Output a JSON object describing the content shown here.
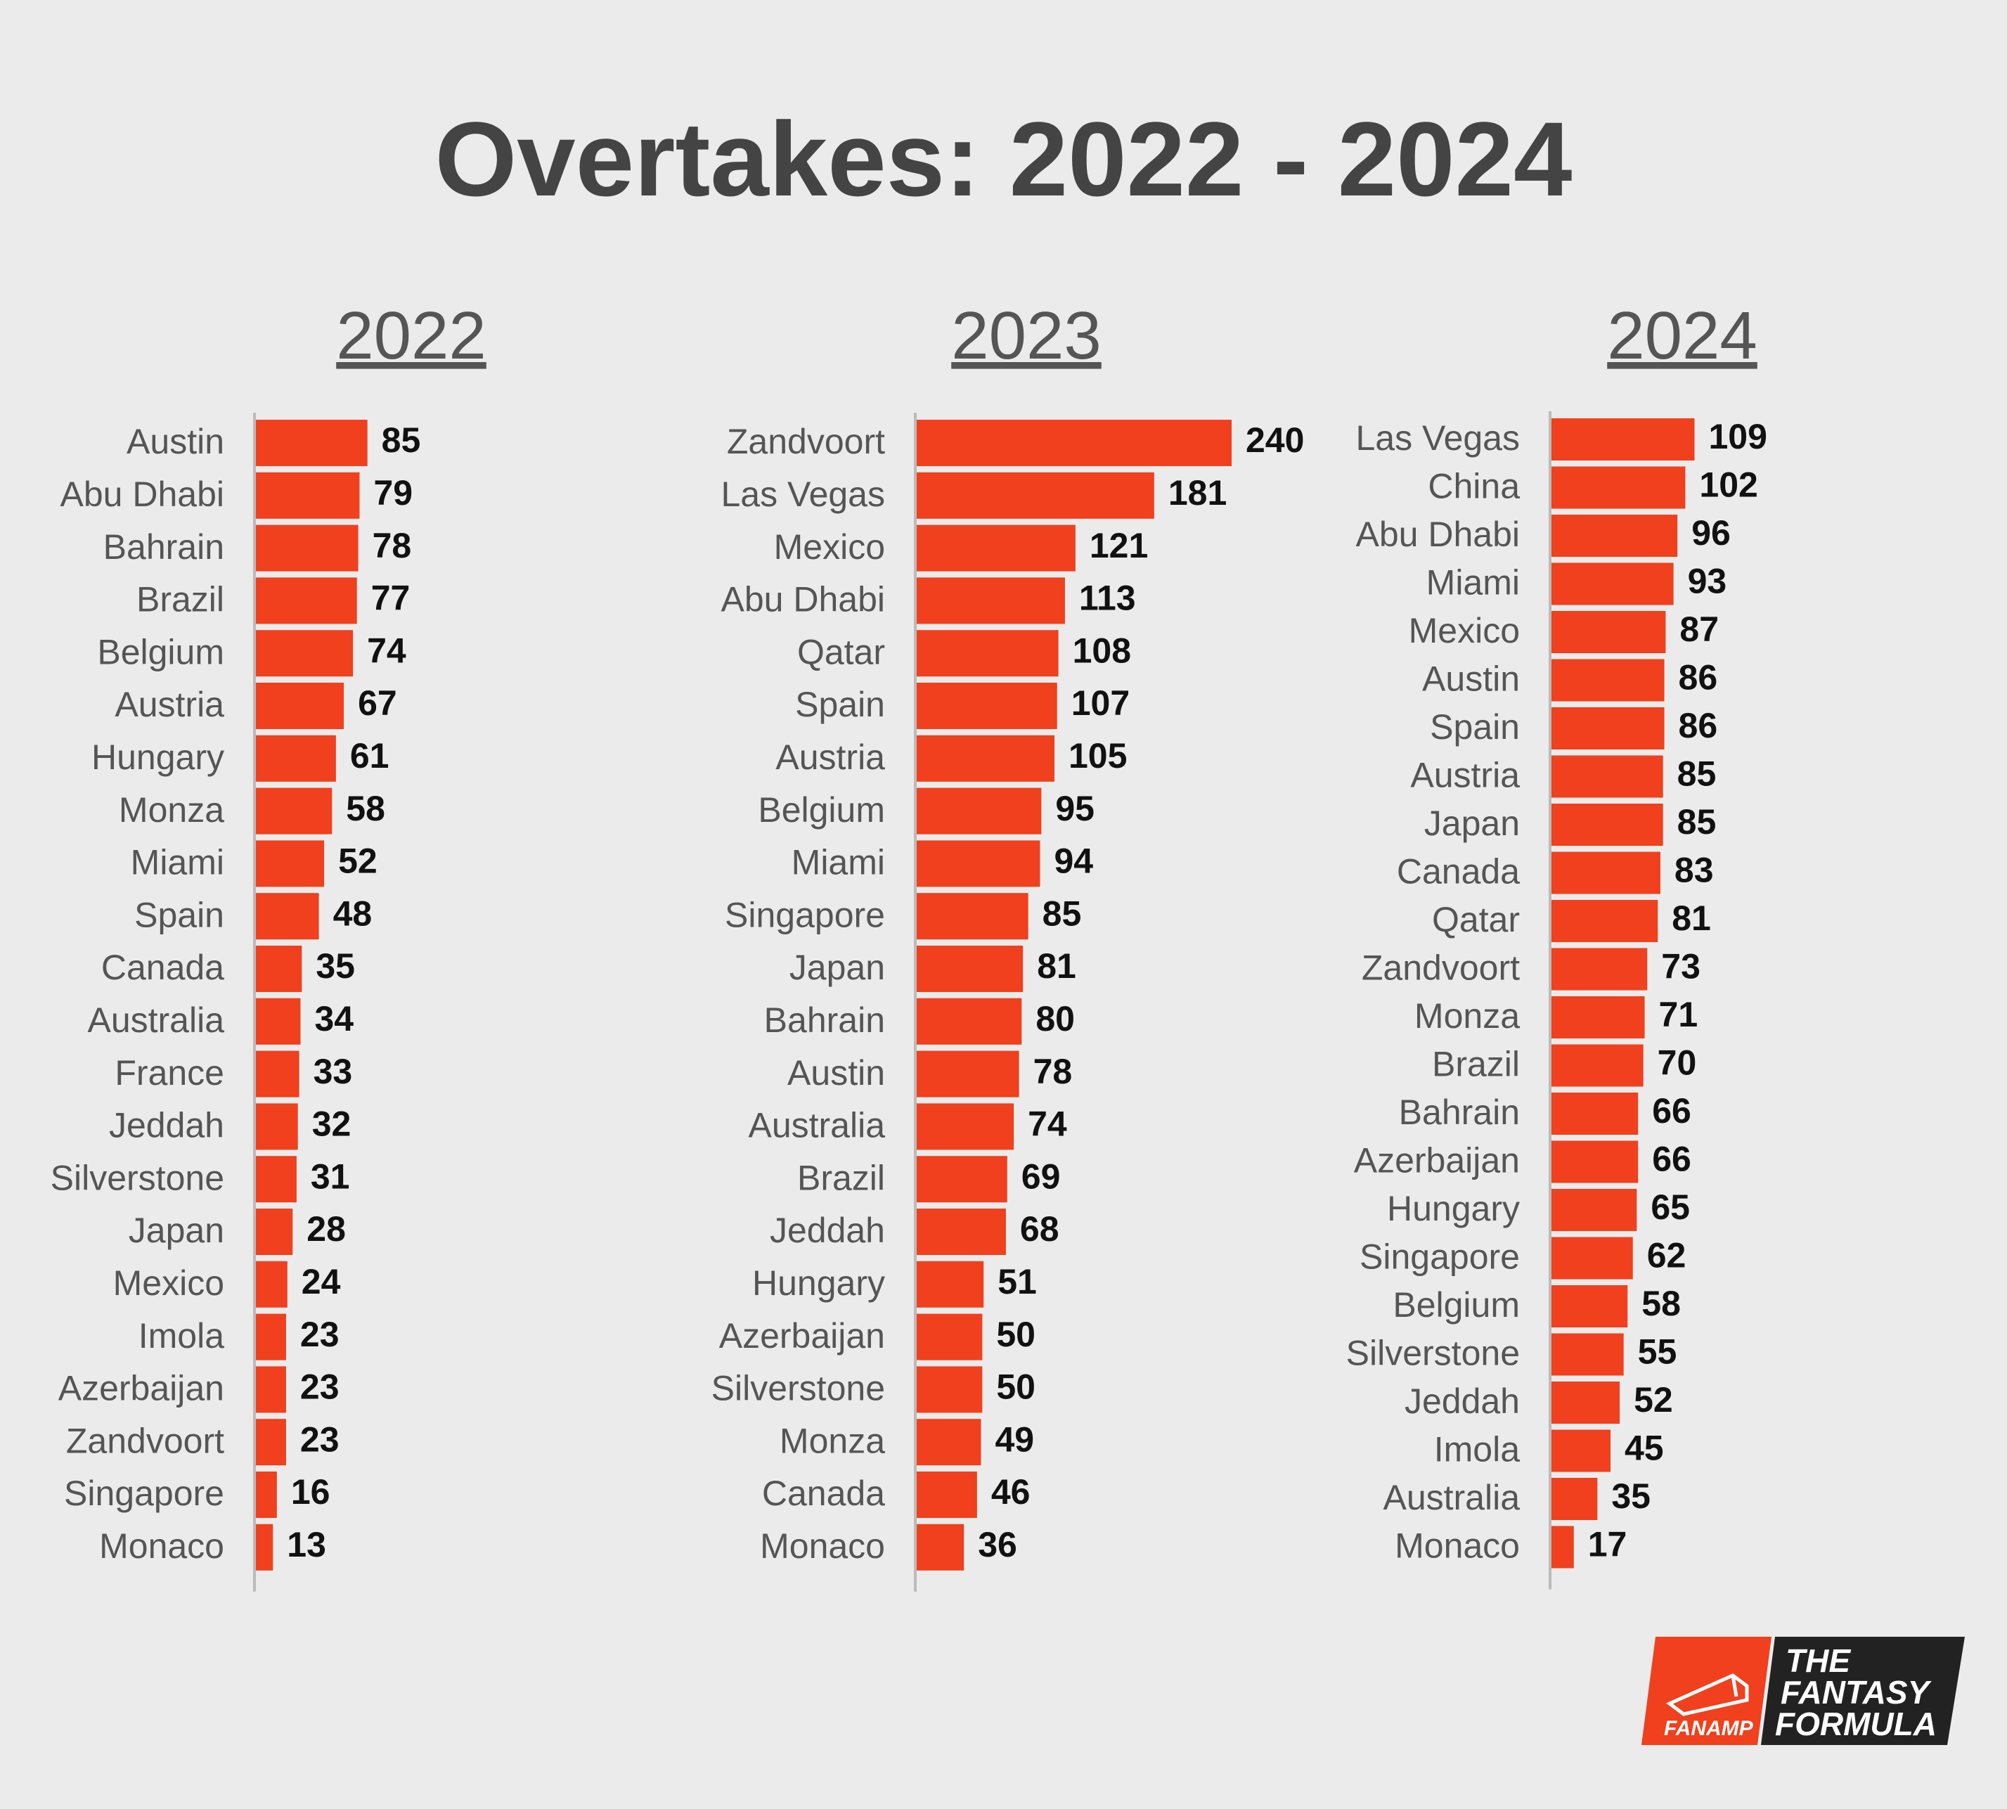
{
  "title": "Overtakes: 2022 - 2024",
  "colors": {
    "background": "#ebebeb",
    "bar": "#f0401d",
    "title": "#444444",
    "label": "#555555",
    "value": "#111111"
  },
  "chart_data": [
    {
      "type": "bar",
      "orientation": "horizontal",
      "title": "2022",
      "categories": [
        "Austin",
        "Abu Dhabi",
        "Bahrain",
        "Brazil",
        "Belgium",
        "Austria",
        "Hungary",
        "Monza",
        "Miami",
        "Spain",
        "Canada",
        "Australia",
        "France",
        "Jeddah",
        "Silverstone",
        "Japan",
        "Mexico",
        "Imola",
        "Azerbaijan",
        "Zandvoort",
        "Singapore",
        "Monaco"
      ],
      "values": [
        85,
        79,
        78,
        77,
        74,
        67,
        61,
        58,
        52,
        48,
        35,
        34,
        33,
        32,
        31,
        28,
        24,
        23,
        23,
        23,
        16,
        13
      ],
      "xlim": [
        0,
        240
      ],
      "grid": false
    },
    {
      "type": "bar",
      "orientation": "horizontal",
      "title": "2023",
      "categories": [
        "Zandvoort",
        "Las Vegas",
        "Mexico",
        "Abu Dhabi",
        "Qatar",
        "Spain",
        "Austria",
        "Belgium",
        "Miami",
        "Singapore",
        "Japan",
        "Bahrain",
        "Austin",
        "Australia",
        "Brazil",
        "Jeddah",
        "Hungary",
        "Azerbaijan",
        "Silverstone",
        "Monza",
        "Canada",
        "Monaco"
      ],
      "values": [
        240,
        181,
        121,
        113,
        108,
        107,
        105,
        95,
        94,
        85,
        81,
        80,
        78,
        74,
        69,
        68,
        51,
        50,
        50,
        49,
        46,
        36
      ],
      "xlim": [
        0,
        240
      ],
      "grid": false
    },
    {
      "type": "bar",
      "orientation": "horizontal",
      "title": "2024",
      "categories": [
        "Las Vegas",
        "China",
        "Abu Dhabi",
        "Miami",
        "Mexico",
        "Austin",
        "Spain",
        "Austria",
        "Japan",
        "Canada",
        "Qatar",
        "Zandvoort",
        "Monza",
        "Brazil",
        "Bahrain",
        "Azerbaijan",
        "Hungary",
        "Singapore",
        "Belgium",
        "Silverstone",
        "Jeddah",
        "Imola",
        "Australia",
        "Monaco"
      ],
      "values": [
        109,
        102,
        96,
        93,
        87,
        86,
        86,
        85,
        85,
        83,
        81,
        73,
        71,
        70,
        66,
        66,
        65,
        62,
        58,
        55,
        52,
        45,
        35,
        17
      ],
      "xlim": [
        0,
        240
      ],
      "grid": false
    }
  ],
  "logo": {
    "left_text": "FANAMP",
    "right_lines": [
      "THE",
      "FANTASY",
      "FORMULA"
    ]
  }
}
